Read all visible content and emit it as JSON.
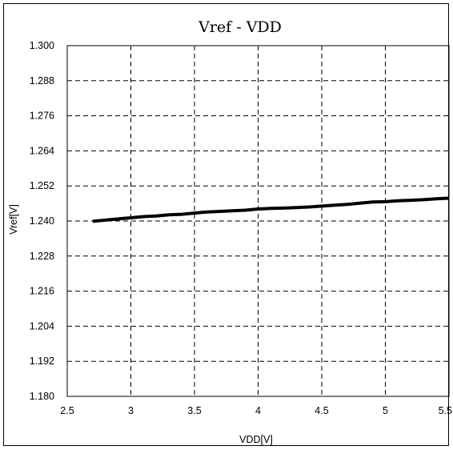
{
  "chart_data": {
    "type": "line",
    "title": "Vref - VDD",
    "xlabel": "VDD[V]",
    "ylabel": "Vref[V]",
    "xlim": [
      2.5,
      5.5
    ],
    "ylim": [
      1.18,
      1.3
    ],
    "x_ticks": [
      "2.5",
      "3",
      "3.5",
      "4",
      "4.5",
      "5",
      "5.5"
    ],
    "y_ticks": [
      "1.300",
      "1.288",
      "1.276",
      "1.264",
      "1.252",
      "1.240",
      "1.228",
      "1.216",
      "1.204",
      "1.192",
      "1.180"
    ],
    "grid": true,
    "grid_style": "dashed",
    "legend": "none",
    "series": [
      {
        "color": "#000000",
        "x": [
          2.7,
          2.8,
          2.9,
          3.0,
          3.1,
          3.2,
          3.3,
          3.4,
          3.5,
          3.6,
          3.7,
          3.8,
          3.9,
          4.0,
          4.1,
          4.2,
          4.3,
          4.4,
          4.5,
          4.6,
          4.7,
          4.8,
          4.9,
          5.0,
          5.1,
          5.2,
          5.3,
          5.4,
          5.5
        ],
        "y": [
          1.2399,
          1.2403,
          1.2407,
          1.2411,
          1.2415,
          1.2417,
          1.2421,
          1.2423,
          1.2427,
          1.2431,
          1.2433,
          1.2435,
          1.2437,
          1.2441,
          1.2443,
          1.2444,
          1.2446,
          1.2448,
          1.2451,
          1.2454,
          1.2457,
          1.2461,
          1.2465,
          1.2466,
          1.2469,
          1.2471,
          1.2473,
          1.2476,
          1.2478
        ]
      }
    ]
  }
}
